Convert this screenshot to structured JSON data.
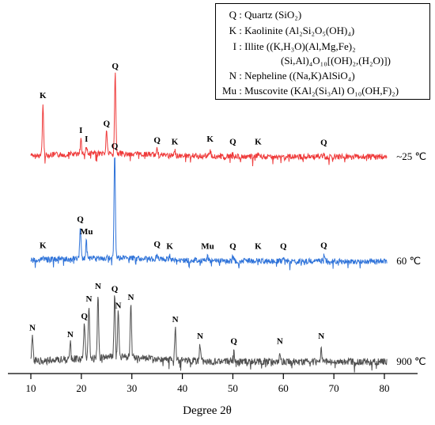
{
  "legend": [
    {
      "key": "Q",
      "text": "Quartz (SiO₂)"
    },
    {
      "key": "K",
      "text": "Kaolinite (Al₂Si₂O₅(OH)₄)"
    },
    {
      "key": "I",
      "text": "Illite  ((K,H₃O)(Al,Mg,Fe)₂"
    },
    {
      "key": "",
      "text": "(Si,Al)₄O₁₀[(OH)₂,(H₂O)])"
    },
    {
      "key": "N",
      "text": "Nepheline ((Na,K)AlSiO₄)"
    },
    {
      "key": "Mu",
      "text": "Muscovite (KAl₂(Si₃Al) O₁₀(OH,F)₂)"
    }
  ],
  "chart_data": {
    "type": "line",
    "title": "",
    "xlabel": "Degree 2θ",
    "ylabel": "",
    "xlim": [
      8,
      82
    ],
    "xticks": [
      10,
      20,
      30,
      40,
      50,
      60,
      70,
      80
    ],
    "y_ticks_shown": false,
    "series": [
      {
        "name": "~25 ℃",
        "color": "#ef3b3b",
        "peaks": [
          {
            "x": 12.4,
            "height": 0.58,
            "label": "K"
          },
          {
            "x": 19.9,
            "height": 0.18,
            "label": "I"
          },
          {
            "x": 21.0,
            "height": 0.08,
            "label": "I"
          },
          {
            "x": 25.0,
            "height": 0.26,
            "label": "Q"
          },
          {
            "x": 26.7,
            "height": 0.92,
            "label": "Q"
          },
          {
            "x": 35.0,
            "height": 0.07,
            "label": "Q"
          },
          {
            "x": 38.5,
            "height": 0.05,
            "label": "K"
          },
          {
            "x": 45.5,
            "height": 0.08,
            "label": "K"
          },
          {
            "x": 50.0,
            "height": 0.05,
            "label": "Q"
          },
          {
            "x": 55.0,
            "height": 0.05,
            "label": "K"
          },
          {
            "x": 68.0,
            "height": 0.04,
            "label": "Q"
          }
        ]
      },
      {
        "name": "60 ℃",
        "color": "#2f73d9",
        "peaks": [
          {
            "x": 12.4,
            "height": 0.05,
            "label": "K"
          },
          {
            "x": 19.8,
            "height": 0.3,
            "label": "Q"
          },
          {
            "x": 21.0,
            "height": 0.18,
            "label": "Mu"
          },
          {
            "x": 26.6,
            "height": 1.0,
            "label": "Q"
          },
          {
            "x": 35.0,
            "height": 0.06,
            "label": "Q"
          },
          {
            "x": 37.5,
            "height": 0.04,
            "label": "K"
          },
          {
            "x": 45.0,
            "height": 0.04,
            "label": "Mu"
          },
          {
            "x": 50.0,
            "height": 0.04,
            "label": "Q"
          },
          {
            "x": 55.0,
            "height": 0.04,
            "label": "K"
          },
          {
            "x": 60.0,
            "height": 0.04,
            "label": "Q"
          },
          {
            "x": 68.0,
            "height": 0.05,
            "label": "Q"
          }
        ]
      },
      {
        "name": "900 ℃",
        "color": "#505050",
        "peaks": [
          {
            "x": 10.3,
            "height": 0.28,
            "label": "N"
          },
          {
            "x": 17.8,
            "height": 0.2,
            "label": "N"
          },
          {
            "x": 20.6,
            "height": 0.42,
            "label": "Q"
          },
          {
            "x": 21.5,
            "height": 0.63,
            "label": "N"
          },
          {
            "x": 23.3,
            "height": 0.78,
            "label": "N"
          },
          {
            "x": 26.6,
            "height": 0.75,
            "label": "Q"
          },
          {
            "x": 27.3,
            "height": 0.55,
            "label": "N"
          },
          {
            "x": 29.8,
            "height": 0.65,
            "label": "N"
          },
          {
            "x": 38.6,
            "height": 0.38,
            "label": "N"
          },
          {
            "x": 43.5,
            "height": 0.18,
            "label": "N"
          },
          {
            "x": 50.2,
            "height": 0.12,
            "label": "Q"
          },
          {
            "x": 59.3,
            "height": 0.12,
            "label": "N"
          },
          {
            "x": 67.5,
            "height": 0.18,
            "label": "N"
          }
        ]
      }
    ]
  }
}
